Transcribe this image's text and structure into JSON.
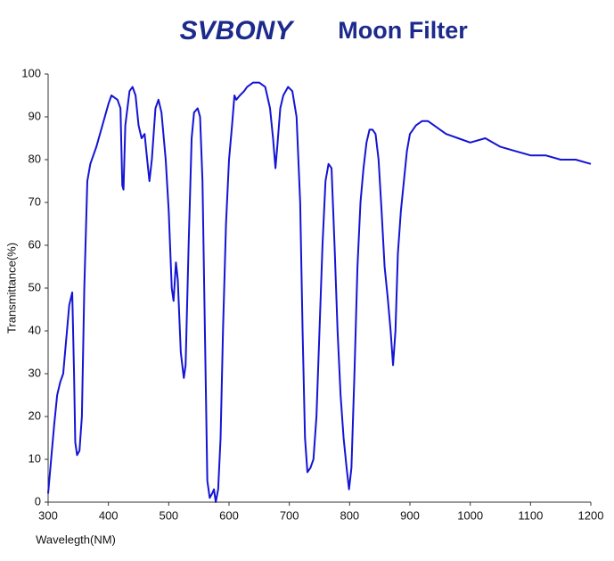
{
  "chart_data": {
    "type": "line",
    "brand": "SVBONY",
    "title": "Moon Filter",
    "xlabel": "Wavelegth(NM)",
    "ylabel": "Transmittance(%)",
    "x": [
      300,
      305,
      310,
      315,
      320,
      325,
      330,
      335,
      340,
      343,
      345,
      348,
      352,
      356,
      360,
      365,
      370,
      380,
      390,
      400,
      405,
      415,
      420,
      423,
      425,
      428,
      435,
      440,
      445,
      450,
      455,
      460,
      465,
      468,
      472,
      478,
      483,
      488,
      495,
      500,
      505,
      508,
      512,
      515,
      520,
      525,
      528,
      533,
      538,
      542,
      548,
      552,
      556,
      560,
      564,
      568,
      572,
      575,
      578,
      582,
      586,
      590,
      595,
      600,
      605,
      609,
      612,
      618,
      625,
      630,
      640,
      650,
      660,
      668,
      673,
      677,
      680,
      685,
      690,
      698,
      705,
      712,
      718,
      722,
      726,
      730,
      735,
      740,
      745,
      750,
      755,
      760,
      765,
      770,
      775,
      780,
      785,
      790,
      795,
      799,
      803,
      808,
      813,
      818,
      823,
      828,
      833,
      838,
      843,
      848,
      853,
      858,
      863,
      868,
      872,
      876,
      880,
      885,
      890,
      895,
      900,
      905,
      910,
      920,
      930,
      940,
      950,
      960,
      980,
      1000,
      1025,
      1050,
      1075,
      1100,
      1125,
      1150,
      1175,
      1200
    ],
    "series": [
      {
        "name": "Transmittance",
        "color": "#1414d4",
        "values": [
          2,
          10,
          18,
          25,
          28,
          30,
          38,
          46,
          49,
          30,
          14,
          11,
          12,
          20,
          50,
          75,
          79,
          83,
          88,
          93,
          95,
          94,
          92,
          74,
          73,
          88,
          96,
          97,
          95,
          88,
          85,
          86,
          79,
          75,
          80,
          92,
          94,
          91,
          80,
          68,
          50,
          47,
          56,
          52,
          35,
          29,
          32,
          60,
          85,
          91,
          92,
          90,
          75,
          40,
          5,
          1,
          2,
          3,
          0,
          3,
          15,
          40,
          65,
          80,
          88,
          95,
          94,
          95,
          96,
          97,
          98,
          98,
          97,
          92,
          85,
          78,
          83,
          92,
          95,
          97,
          96,
          90,
          70,
          40,
          15,
          7,
          8,
          10,
          20,
          40,
          60,
          75,
          79,
          78,
          60,
          40,
          25,
          15,
          8,
          3,
          8,
          30,
          55,
          70,
          78,
          84,
          87,
          87,
          86,
          80,
          68,
          55,
          48,
          40,
          32,
          40,
          58,
          68,
          75,
          82,
          86,
          87,
          88,
          89,
          89,
          88,
          87,
          86,
          85,
          84,
          85,
          83,
          82,
          81,
          81,
          80,
          80,
          79
        ]
      }
    ],
    "xlim": [
      300,
      1200
    ],
    "ylim": [
      0,
      100
    ],
    "xticks": [
      300,
      400,
      500,
      600,
      700,
      800,
      900,
      1000,
      1100,
      1200
    ],
    "yticks": [
      0,
      10,
      20,
      30,
      40,
      50,
      60,
      70,
      80,
      90,
      100
    ],
    "grid": false
  }
}
